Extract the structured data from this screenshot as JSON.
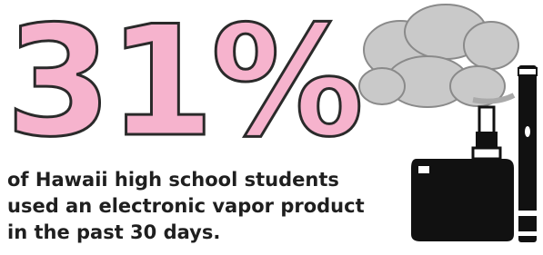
{
  "stat": "31%",
  "caption": [
    "of Hawaii high school students",
    "used an electronic vapor product",
    "in the past 30 days."
  ]
}
